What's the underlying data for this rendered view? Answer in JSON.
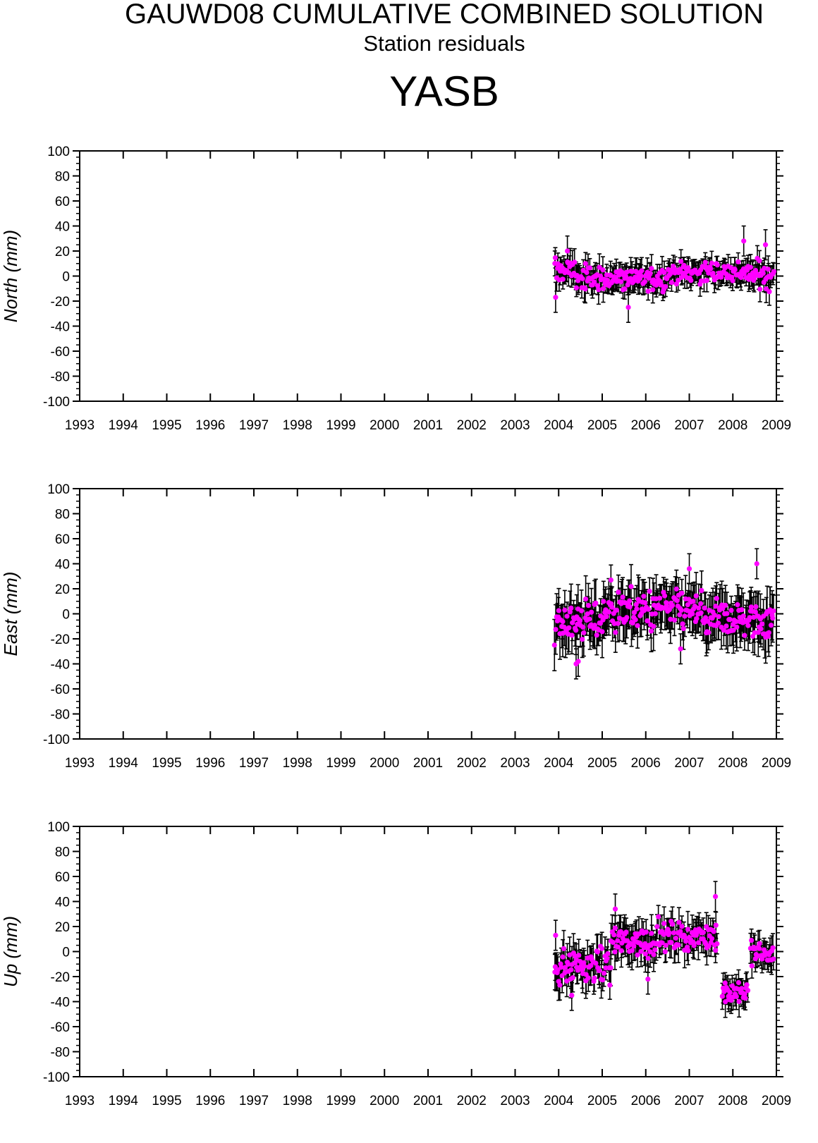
{
  "header": {
    "title": "GAUWD08 CUMULATIVE COMBINED SOLUTION",
    "subtitle": "Station residuals",
    "station": "YASB"
  },
  "colors": {
    "marker": "#ff00ff",
    "errorbar": "#000000",
    "axes": "#000000"
  },
  "chart_data": [
    {
      "type": "scatter",
      "component": "north",
      "ylabel": "North (mm)",
      "xlim": [
        1993,
        2009
      ],
      "ylim": [
        -100,
        100
      ],
      "xticks": [
        "1993",
        "1994",
        "1995",
        "1996",
        "1997",
        "1998",
        "1999",
        "2000",
        "2001",
        "2002",
        "2003",
        "2004",
        "2005",
        "2006",
        "2007",
        "2008",
        "2009"
      ],
      "yticks": [
        "100",
        "80",
        "60",
        "40",
        "20",
        "0",
        "-20",
        "-40",
        "-60",
        "-80",
        "-100"
      ],
      "grid": false,
      "segments": [
        {
          "x0": 2003.9,
          "x1": 2004.4,
          "mean": 5,
          "amp": 8,
          "err": 9
        },
        {
          "x0": 2004.4,
          "x1": 2006.5,
          "mean": -2,
          "amp": 8,
          "err": 9
        },
        {
          "x0": 2006.5,
          "x1": 2008.2,
          "mean": 3,
          "amp": 7,
          "err": 8
        },
        {
          "x0": 2008.2,
          "x1": 2008.95,
          "mean": 1,
          "amp": 9,
          "err": 9
        }
      ],
      "outliers": [
        [
          2003.93,
          -17
        ],
        [
          2005.6,
          -25
        ],
        [
          2008.25,
          28
        ],
        [
          2008.75,
          25
        ],
        [
          2004.2,
          20
        ]
      ]
    },
    {
      "type": "scatter",
      "component": "east",
      "ylabel": "East (mm)",
      "xlim": [
        1993,
        2009
      ],
      "ylim": [
        -100,
        100
      ],
      "xticks": [
        "1993",
        "1994",
        "1995",
        "1996",
        "1997",
        "1998",
        "1999",
        "2000",
        "2001",
        "2002",
        "2003",
        "2004",
        "2005",
        "2006",
        "2007",
        "2008",
        "2009"
      ],
      "yticks": [
        "100",
        "80",
        "60",
        "40",
        "20",
        "0",
        "-20",
        "-40",
        "-60",
        "-80",
        "-100"
      ],
      "grid": false,
      "segments": [
        {
          "x0": 2003.9,
          "x1": 2005.0,
          "mean": -6,
          "amp": 14,
          "err": 16
        },
        {
          "x0": 2005.0,
          "x1": 2007.3,
          "mean": 3,
          "amp": 13,
          "err": 15
        },
        {
          "x0": 2007.3,
          "x1": 2008.95,
          "mean": -5,
          "amp": 13,
          "err": 16
        }
      ],
      "outliers": [
        [
          2004.4,
          -40
        ],
        [
          2004.45,
          -38
        ],
        [
          2006.8,
          -28
        ],
        [
          2007.0,
          36
        ],
        [
          2008.55,
          40
        ],
        [
          2005.2,
          27
        ]
      ]
    },
    {
      "type": "scatter",
      "component": "up",
      "ylabel": "Up (mm)",
      "xlim": [
        1993,
        2009
      ],
      "ylim": [
        -100,
        100
      ],
      "xticks": [
        "1993",
        "1994",
        "1995",
        "1996",
        "1997",
        "1998",
        "1999",
        "2000",
        "2001",
        "2002",
        "2003",
        "2004",
        "2005",
        "2006",
        "2007",
        "2008",
        "2009"
      ],
      "yticks": [
        "100",
        "80",
        "60",
        "40",
        "20",
        "0",
        "-20",
        "-40",
        "-60",
        "-80",
        "-100"
      ],
      "grid": false,
      "segments": [
        {
          "x0": 2003.9,
          "x1": 2005.2,
          "mean": -12,
          "amp": 11,
          "err": 12
        },
        {
          "x0": 2005.2,
          "x1": 2006.2,
          "mean": 8,
          "amp": 10,
          "err": 12
        },
        {
          "x0": 2006.2,
          "x1": 2007.65,
          "mean": 12,
          "amp": 9,
          "err": 11
        },
        {
          "x0": 2007.75,
          "x1": 2008.35,
          "mean": -32,
          "amp": 8,
          "err": 10
        },
        {
          "x0": 2008.4,
          "x1": 2008.95,
          "mean": -2,
          "amp": 8,
          "err": 10
        }
      ],
      "outliers": [
        [
          2003.93,
          13
        ],
        [
          2007.6,
          44
        ],
        [
          2006.05,
          -22
        ],
        [
          2004.3,
          -35
        ],
        [
          2005.3,
          34
        ]
      ]
    }
  ]
}
